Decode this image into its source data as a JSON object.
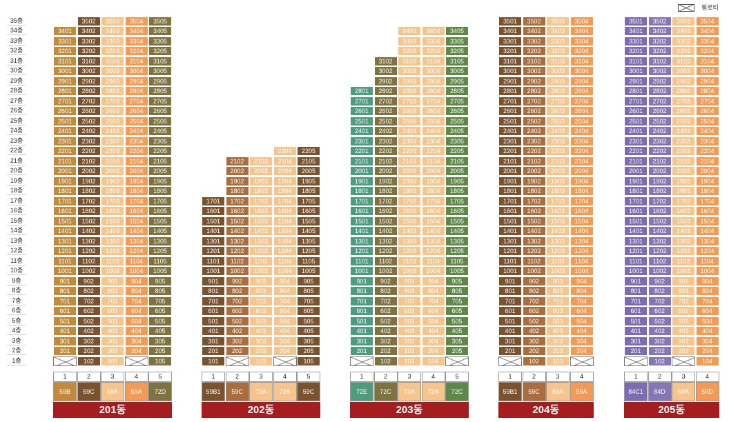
{
  "legend": {
    "label": "필로티"
  },
  "colors": {
    "brown": "#7b5230",
    "lightBrown": "#aa6e3e",
    "peach": "#f6c48d",
    "orange": "#f39a54",
    "olive": "#7f7241",
    "gold": "#c28a3a",
    "green": "#5d8848",
    "teal": "#4f9b7f",
    "violet": "#7c6cb4",
    "violetLight": "#8478b4",
    "banner": "#a51d1f"
  },
  "floors": [
    "1층",
    "2층",
    "3층",
    "4층",
    "5층",
    "6층",
    "7층",
    "8층",
    "9층",
    "10층",
    "11층",
    "12층",
    "13층",
    "14층",
    "15층",
    "16층",
    "17층",
    "18층",
    "19층",
    "20층",
    "21층",
    "22층",
    "23층",
    "24층",
    "25층",
    "26층",
    "27층",
    "28층",
    "29층",
    "30층",
    "31층",
    "32층",
    "33층",
    "34층",
    "35층"
  ],
  "buildings": [
    {
      "name": "201동",
      "lines": [
        {
          "num": "1",
          "type": "59B",
          "color": "gold",
          "textColor": "#fff",
          "top": 34,
          "pilotiFloors": [
            1
          ],
          "extra": []
        },
        {
          "num": "2",
          "type": "59C",
          "color": "brown",
          "textColor": "#fff",
          "top": 35,
          "pilotiFloors": [],
          "extra": []
        },
        {
          "num": "3",
          "type": "59A",
          "color": "peach",
          "textColor": "#fff",
          "top": 35,
          "pilotiFloors": [],
          "extra": []
        },
        {
          "num": "4",
          "type": "59A",
          "color": "orange",
          "textColor": "#fff",
          "top": 35,
          "pilotiFloors": [
            1
          ],
          "extra": []
        },
        {
          "num": "5",
          "type": "72D",
          "color": "olive",
          "textColor": "#fff",
          "top": 35,
          "pilotiFloors": [],
          "extra": []
        }
      ]
    },
    {
      "name": "202동",
      "lines": [
        {
          "num": "1",
          "type": "59B1",
          "color": "brown",
          "textColor": "#fff",
          "top": 17,
          "pilotiFloors": [],
          "extra": []
        },
        {
          "num": "2",
          "type": "59C",
          "color": "lightBrown",
          "textColor": "#fff",
          "top": 21,
          "pilotiFloors": [
            1
          ],
          "extra": []
        },
        {
          "num": "3",
          "type": "72A",
          "color": "peach",
          "textColor": "#fff",
          "top": 21,
          "pilotiFloors": [],
          "extra": []
        },
        {
          "num": "4",
          "type": "72A",
          "color": "peach",
          "textColor": "#fff",
          "top": 22,
          "pilotiFloors": [
            1
          ],
          "extra": []
        },
        {
          "num": "5",
          "type": "59C",
          "color": "brown",
          "textColor": "#fff",
          "top": 22,
          "pilotiFloors": [],
          "extra": []
        }
      ]
    },
    {
      "name": "203동",
      "lines": [
        {
          "num": "1",
          "type": "72E",
          "color": "teal",
          "textColor": "#fff",
          "top": 28,
          "pilotiFloors": [
            1
          ],
          "extra": []
        },
        {
          "num": "2",
          "type": "72C",
          "color": "olive",
          "textColor": "#fff",
          "top": 31,
          "pilotiFloors": [],
          "extra": []
        },
        {
          "num": "3",
          "type": "72A",
          "color": "peach",
          "textColor": "#fff",
          "top": 34,
          "pilotiFloors": [],
          "extra": []
        },
        {
          "num": "4",
          "type": "72A",
          "color": "peach",
          "textColor": "#fff",
          "top": 34,
          "pilotiFloors": [],
          "extra": []
        },
        {
          "num": "5",
          "type": "72C",
          "color": "green",
          "textColor": "#fff",
          "top": 34,
          "pilotiFloors": [
            1
          ],
          "extra": []
        }
      ]
    },
    {
      "name": "204동",
      "lines": [
        {
          "num": "1",
          "type": "59B1",
          "color": "brown",
          "textColor": "#fff",
          "top": 35,
          "pilotiFloors": [
            1
          ],
          "extra": []
        },
        {
          "num": "2",
          "type": "59C",
          "color": "lightBrown",
          "textColor": "#fff",
          "top": 35,
          "pilotiFloors": [],
          "extra": []
        },
        {
          "num": "3",
          "type": "59A",
          "color": "peach",
          "textColor": "#fff",
          "top": 35,
          "pilotiFloors": [],
          "extra": []
        },
        {
          "num": "4",
          "type": "59A",
          "color": "orange",
          "textColor": "#fff",
          "top": 35,
          "pilotiFloors": [
            1
          ],
          "extra": []
        }
      ]
    },
    {
      "name": "205동",
      "lines": [
        {
          "num": "1",
          "type": "84C1",
          "color": "violet",
          "textColor": "#fff",
          "top": 35,
          "pilotiFloors": [
            1
          ],
          "extra": []
        },
        {
          "num": "2",
          "type": "84D",
          "color": "violetLight",
          "textColor": "#fff",
          "top": 35,
          "pilotiFloors": [],
          "extra": []
        },
        {
          "num": "3",
          "type": "59A",
          "color": "peach",
          "textColor": "#fff",
          "top": 35,
          "pilotiFloors": [
            1
          ],
          "extra": []
        },
        {
          "num": "4",
          "type": "59D",
          "color": "orange",
          "textColor": "#fff",
          "top": 35,
          "pilotiFloors": [],
          "extra": []
        }
      ]
    }
  ]
}
